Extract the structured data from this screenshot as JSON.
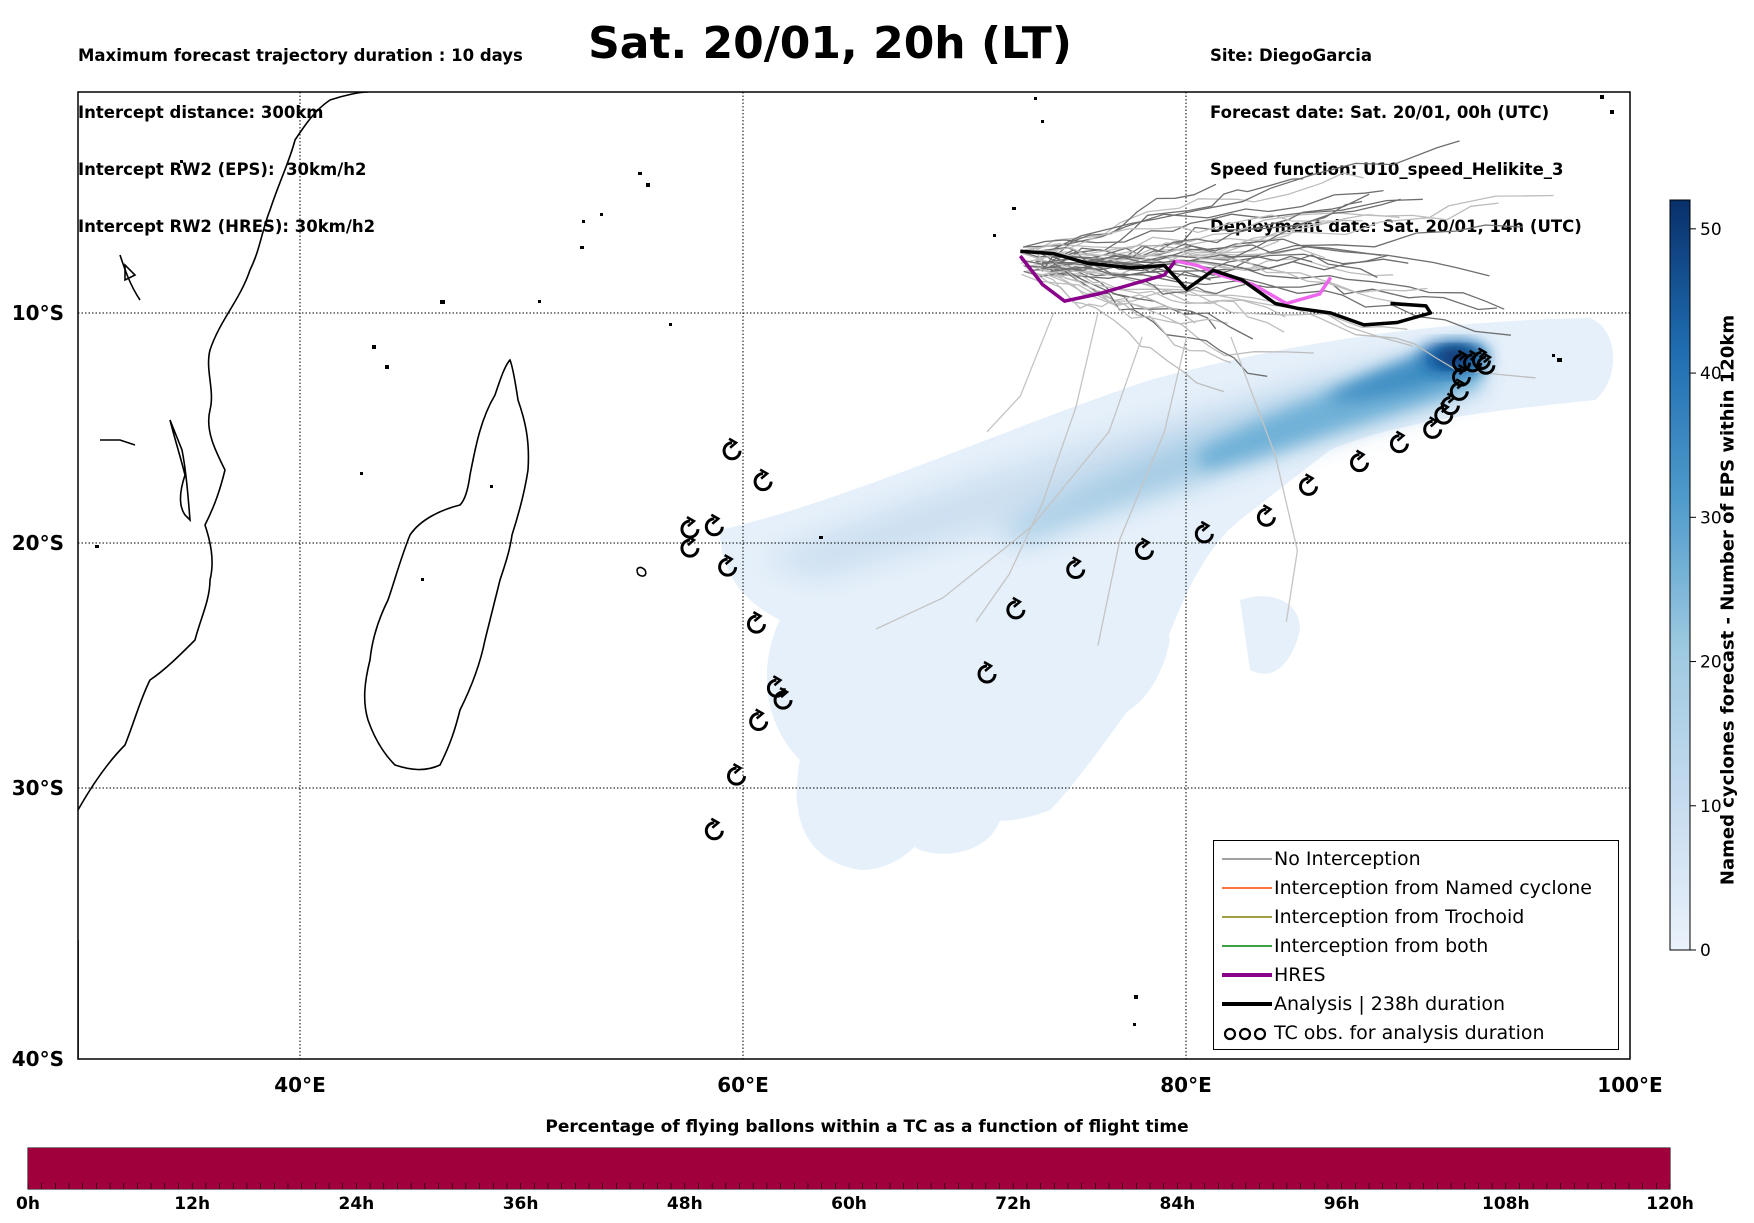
{
  "header_left": [
    "Maximum forecast trajectory duration : 10 days",
    "Intercept distance: 300km",
    "Intercept RW2 (EPS):  30km/h2",
    "Intercept RW2 (HRES): 30km/h2"
  ],
  "title": "Sat. 20/01, 20h (LT)",
  "header_right": [
    "Site: DiegoGarcia",
    "Forecast date: Sat. 20/01, 00h (UTC)",
    "Speed function: U10_speed_Helikite_3",
    "Deployment date: Sat. 20/01, 14h (UTC)"
  ],
  "map": {
    "lon_labels": [
      "40°E",
      "60°E",
      "80°E",
      "100°E"
    ],
    "lat_labels": [
      "10°S",
      "20°S",
      "30°S",
      "40°S"
    ],
    "lon_range": [
      30,
      100
    ],
    "lat_range": [
      0.5,
      -41.5
    ]
  },
  "legend": {
    "items": [
      {
        "label": "No Interception",
        "color": "#808080",
        "kind": "line-thin"
      },
      {
        "label": "Interception from Named cyclone",
        "color": "#ff4500",
        "kind": "line-thin"
      },
      {
        "label": "Interception from Trochoid",
        "color": "#808000",
        "kind": "line-thin"
      },
      {
        "label": "Interception from both",
        "color": "#008000",
        "kind": "line-thin"
      },
      {
        "label": "HRES",
        "color": "#8b008b",
        "kind": "line-thick"
      },
      {
        "label": "Analysis | 238h duration",
        "color": "#000000",
        "kind": "line-thick"
      },
      {
        "label": "TC obs. for analysis duration",
        "color": "#000000",
        "kind": "tc-symbol"
      }
    ]
  },
  "colorbar": {
    "title": "Named cyclones forecast - Number of EPS within 120km",
    "ticks": [
      "0",
      "10",
      "20",
      "30",
      "40",
      "50"
    ],
    "max": 52,
    "colors": [
      "#e8f1fa",
      "#c9ddef",
      "#9ec8e2",
      "#6aaed6",
      "#3a8ac1",
      "#1764ab",
      "#08306b"
    ]
  },
  "progress_bar": {
    "title": "Percentage of flying ballons within a TC as a function of flight time",
    "ticks": [
      "0h",
      "12h",
      "24h",
      "36h",
      "48h",
      "60h",
      "72h",
      "84h",
      "96h",
      "108h",
      "120h"
    ],
    "fill_color": "#a0003c",
    "fill_fraction": 1.0
  },
  "tracks": {
    "analysis_lonlat": [
      [
        72.5,
        -7.4
      ],
      [
        74.0,
        -7.5
      ],
      [
        75.5,
        -7.9
      ],
      [
        77.5,
        -8.1
      ],
      [
        79.0,
        -8.0
      ],
      [
        80.0,
        -9.0
      ],
      [
        81.2,
        -8.2
      ],
      [
        82.5,
        -8.6
      ],
      [
        84.0,
        -9.6
      ],
      [
        85.0,
        -9.8
      ],
      [
        86.5,
        -10.0
      ],
      [
        88.0,
        -10.5
      ],
      [
        89.5,
        -10.4
      ],
      [
        91.0,
        -10.0
      ],
      [
        90.8,
        -9.7
      ],
      [
        89.2,
        -9.6
      ]
    ],
    "hres_lonlat": [
      [
        72.5,
        -7.6
      ],
      [
        73.5,
        -8.8
      ],
      [
        74.5,
        -9.5
      ],
      [
        76.0,
        -9.2
      ],
      [
        77.5,
        -8.8
      ],
      [
        79.0,
        -8.4
      ],
      [
        79.5,
        -7.8
      ],
      [
        80.5,
        -8.0
      ],
      [
        81.5,
        -8.4
      ],
      [
        83.0,
        -8.8
      ],
      [
        84.5,
        -9.6
      ],
      [
        86.0,
        -9.2
      ],
      [
        86.5,
        -8.5
      ]
    ],
    "tc_obs_lonlat": [
      [
        59.5,
        -15.8
      ],
      [
        60.9,
        -17.1
      ],
      [
        57.6,
        -19.1
      ],
      [
        58.7,
        -19.0
      ],
      [
        57.6,
        -19.9
      ],
      [
        59.3,
        -20.7
      ],
      [
        60.6,
        -23.1
      ],
      [
        61.5,
        -25.8
      ],
      [
        61.8,
        -26.3
      ],
      [
        60.7,
        -27.2
      ],
      [
        59.7,
        -29.5
      ],
      [
        58.7,
        -31.8
      ],
      [
        71.0,
        -25.2
      ],
      [
        72.3,
        -22.5
      ],
      [
        75.0,
        -20.8
      ],
      [
        78.1,
        -20.0
      ],
      [
        80.8,
        -19.3
      ],
      [
        83.6,
        -18.6
      ],
      [
        85.5,
        -17.3
      ],
      [
        87.8,
        -16.3
      ],
      [
        89.6,
        -15.5
      ],
      [
        91.1,
        -14.9
      ],
      [
        91.6,
        -14.3
      ],
      [
        91.9,
        -13.9
      ],
      [
        92.3,
        -13.3
      ],
      [
        92.4,
        -12.7
      ],
      [
        92.4,
        -12.1
      ],
      [
        92.9,
        -12.1
      ],
      [
        93.3,
        -12.0
      ],
      [
        93.5,
        -12.2
      ]
    ]
  }
}
